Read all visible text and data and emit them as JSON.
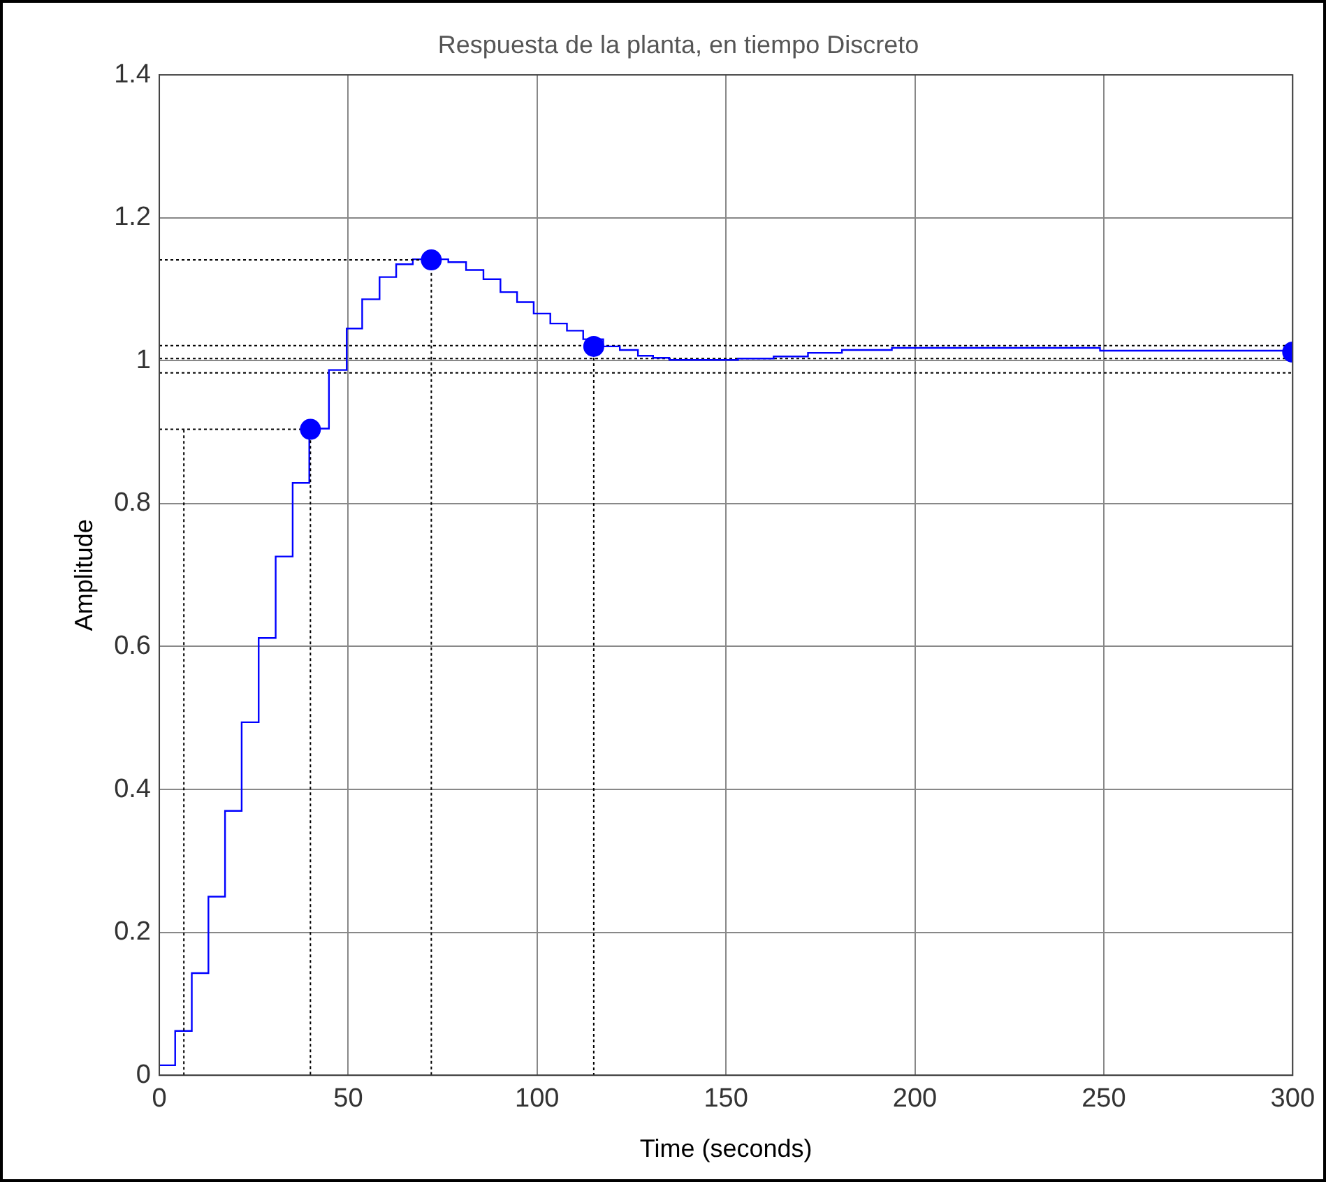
{
  "chart_data": {
    "type": "step",
    "title": "Respuesta de la planta, en tiempo Discreto",
    "xlabel": "Time (seconds)",
    "ylabel": "Amplitude",
    "xlim": [
      0,
      300
    ],
    "xticks": [
      0,
      50,
      100,
      150,
      200,
      250,
      300
    ],
    "ylim": [
      0,
      1.4
    ],
    "yticks": [
      0,
      0.2,
      0.4,
      0.6,
      0.8,
      1,
      1.2,
      1.4
    ],
    "grid": true,
    "legend": false,
    "series": [
      {
        "color": "#0000ff",
        "x": [
          0,
          4.2,
          8.6,
          13,
          17.4,
          21.8,
          26.3,
          30.8,
          35.3,
          39.7,
          44.9,
          49.6,
          53.7,
          58.3,
          62.7,
          67.1,
          76.5,
          81.2,
          85.8,
          90.3,
          94.7,
          99.1,
          103.5,
          107.9,
          112.2,
          117.5,
          121.9,
          126.7,
          130.7,
          135,
          153.2,
          162.6,
          171.7,
          180.7,
          193.9,
          249,
          300
        ],
        "values": [
          0.014,
          0.062,
          0.143,
          0.25,
          0.37,
          0.494,
          0.612,
          0.726,
          0.829,
          0.905,
          0.987,
          1.045,
          1.086,
          1.117,
          1.135,
          1.142,
          1.138,
          1.127,
          1.114,
          1.096,
          1.082,
          1.066,
          1.052,
          1.042,
          1.03,
          1.02,
          1.015,
          1.007,
          1.004,
          1.001,
          1.003,
          1.006,
          1.011,
          1.015,
          1.018,
          1.014,
          1.014
        ]
      },
      {
        "type": "line",
        "color": "#000000",
        "line_style": "dotted",
        "x": [
          0,
          40,
          40
        ],
        "values": [
          0.904,
          0.904,
          0
        ]
      },
      {
        "type": "line",
        "color": "#000000",
        "line_style": "dotted",
        "x": [
          6.5,
          6.5
        ],
        "values": [
          0,
          0.904
        ]
      },
      {
        "type": "line",
        "color": "#000000",
        "line_style": "dotted",
        "x": [
          0,
          72,
          72
        ],
        "values": [
          1.141,
          1.141,
          0
        ]
      },
      {
        "type": "line",
        "color": "#000000",
        "line_style": "dotted",
        "x": [
          115,
          115
        ],
        "values": [
          1.02,
          0
        ]
      },
      {
        "type": "scatter",
        "color": "#0000ff",
        "marker": "circle",
        "x": [
          40,
          72,
          115,
          300
        ],
        "values": [
          0.904,
          1.141,
          1.02,
          1.012
        ]
      }
    ],
    "ref_lines": [
      {
        "axis": "y",
        "value": 1.021,
        "color": "#000000",
        "line_style": "dotted"
      },
      {
        "axis": "y",
        "value": 1.003,
        "color": "#000000",
        "line_style": "dotted"
      },
      {
        "axis": "y",
        "value": 0.983,
        "color": "#000000",
        "line_style": "dotted"
      }
    ]
  }
}
